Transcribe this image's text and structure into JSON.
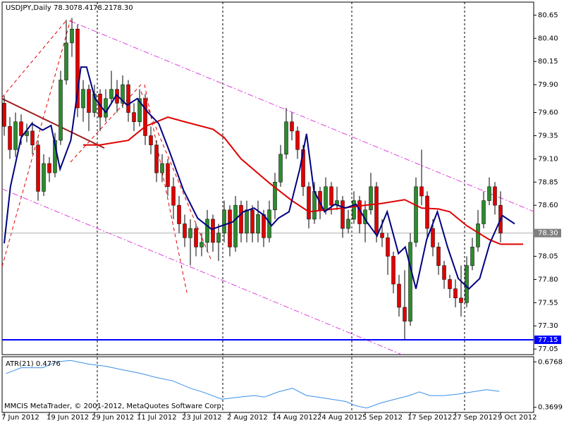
{
  "chart_data": {
    "type": "candlestick",
    "title": "USDJPY,Daily",
    "header_ohlc": {
      "values": [
        78.3,
        78.41,
        78.21,
        78.3
      ],
      "value_labels": [
        "78.30",
        "78.41",
        "78.21",
        "78.30"
      ]
    },
    "categories": [
      "7 Jun 2012",
      null,
      null,
      null,
      null,
      null,
      null,
      null,
      "19 Jun 2012",
      null,
      null,
      null,
      null,
      null,
      null,
      null,
      "29 Jun 2012",
      null,
      null,
      null,
      null,
      null,
      null,
      null,
      "11 Jul 2012",
      null,
      null,
      null,
      null,
      null,
      null,
      null,
      "23 Jul 2012",
      null,
      null,
      null,
      null,
      null,
      null,
      null,
      "2 Aug 2012",
      null,
      null,
      null,
      null,
      null,
      null,
      null,
      "14 Aug 2012",
      null,
      null,
      null,
      null,
      null,
      null,
      null,
      "24 Aug 2012",
      null,
      null,
      null,
      null,
      null,
      null,
      null,
      "5 Sep 2012",
      null,
      null,
      null,
      null,
      null,
      null,
      null,
      "17 Sep 2012",
      null,
      null,
      null,
      null,
      null,
      null,
      null,
      "27 Sep 2012",
      null,
      null,
      null,
      null,
      null,
      null,
      null,
      "9 Oct 2012"
    ],
    "open": [
      79.7,
      79.45,
      79.2,
      79.5,
      79.35,
      79.4,
      79.25,
      78.75,
      79.05,
      78.95,
      79.3,
      79.95,
      80.35,
      80.5,
      79.65,
      79.85,
      79.6,
      79.8,
      79.55,
      79.75,
      79.85,
      79.7,
      79.9,
      79.6,
      79.5,
      79.75,
      79.35,
      79.25,
      78.95,
      79.05,
      78.8,
      78.6,
      78.4,
      78.25,
      78.35,
      78.15,
      78.2,
      78.45,
      78.2,
      78.3,
      78.55,
      78.15,
      78.6,
      78.3,
      78.55,
      78.3,
      78.5,
      78.25,
      78.55,
      78.85,
      79.15,
      79.5,
      79.4,
      79.2,
      78.8,
      78.45,
      78.75,
      78.55,
      78.8,
      78.6,
      78.65,
      78.35,
      78.45,
      78.65,
      78.4,
      78.55,
      78.8,
      78.3,
      78.25,
      78.05,
      77.75,
      77.5,
      77.35,
      78.2,
      78.8,
      78.7,
      78.35,
      78.15,
      77.95,
      77.8,
      77.7,
      77.6,
      77.55,
      77.95,
      78.15,
      78.4,
      78.65,
      78.8,
      78.6
    ],
    "high": [
      79.78,
      79.55,
      79.6,
      79.58,
      79.48,
      79.5,
      79.3,
      79.15,
      79.12,
      79.38,
      80.05,
      80.6,
      80.62,
      80.55,
      79.95,
      79.9,
      79.9,
      79.85,
      79.85,
      80.05,
      79.95,
      80.0,
      79.95,
      79.7,
      79.85,
      79.8,
      79.45,
      79.3,
      79.15,
      79.1,
      78.9,
      78.7,
      78.5,
      78.45,
      78.4,
      78.3,
      78.55,
      78.5,
      78.4,
      78.65,
      78.6,
      78.7,
      78.65,
      78.65,
      78.6,
      78.65,
      78.55,
      78.65,
      78.95,
      79.25,
      79.65,
      79.6,
      79.45,
      79.25,
      78.85,
      78.85,
      78.8,
      78.9,
      78.85,
      78.8,
      78.7,
      78.55,
      78.75,
      78.7,
      78.65,
      78.95,
      78.85,
      78.45,
      78.3,
      78.1,
      77.85,
      77.9,
      78.3,
      78.9,
      79.2,
      78.75,
      78.45,
      78.2,
      78.0,
      77.85,
      77.8,
      77.95,
      78.05,
      78.25,
      78.55,
      78.75,
      78.9,
      78.85,
      78.75
    ],
    "low": [
      79.35,
      79.1,
      79.12,
      79.25,
      79.28,
      79.15,
      78.65,
      78.7,
      78.85,
      78.9,
      79.25,
      79.9,
      80.2,
      79.55,
      79.5,
      79.4,
      79.55,
      79.4,
      79.5,
      79.7,
      79.6,
      79.65,
      79.5,
      79.4,
      79.45,
      79.25,
      79.15,
      78.85,
      78.85,
      78.7,
      78.45,
      78.3,
      78.15,
      77.95,
      78.05,
      78.05,
      78.1,
      78.1,
      78.0,
      78.2,
      78.05,
      78.1,
      78.2,
      78.2,
      78.2,
      78.2,
      78.15,
      78.2,
      78.45,
      78.8,
      79.1,
      79.3,
      79.1,
      78.7,
      78.35,
      78.4,
      78.45,
      78.5,
      78.5,
      78.55,
      78.25,
      78.3,
      78.4,
      78.3,
      78.2,
      78.5,
      78.2,
      78.15,
      77.85,
      77.65,
      77.4,
      77.15,
      77.3,
      78.15,
      78.6,
      78.25,
      78.05,
      77.85,
      77.7,
      77.6,
      77.5,
      77.4,
      77.5,
      77.9,
      78.1,
      78.35,
      78.6,
      78.5,
      78.2
    ],
    "close": [
      79.45,
      79.2,
      79.5,
      79.35,
      79.4,
      79.25,
      78.75,
      79.05,
      78.95,
      79.3,
      79.95,
      80.35,
      80.5,
      79.65,
      79.85,
      79.6,
      79.8,
      79.55,
      79.75,
      79.85,
      79.7,
      79.9,
      79.6,
      79.5,
      79.75,
      79.35,
      79.25,
      78.95,
      79.05,
      78.8,
      78.6,
      78.4,
      78.25,
      78.35,
      78.15,
      78.2,
      78.45,
      78.2,
      78.3,
      78.55,
      78.15,
      78.6,
      78.3,
      78.55,
      78.3,
      78.5,
      78.25,
      78.55,
      78.85,
      79.15,
      79.5,
      79.4,
      79.2,
      78.8,
      78.45,
      78.75,
      78.55,
      78.8,
      78.6,
      78.65,
      78.35,
      78.45,
      78.65,
      78.4,
      78.55,
      78.8,
      78.3,
      78.25,
      78.05,
      77.75,
      77.5,
      77.35,
      78.2,
      78.8,
      78.7,
      78.35,
      78.15,
      77.95,
      77.8,
      77.7,
      77.6,
      77.55,
      77.95,
      78.15,
      78.4,
      78.65,
      78.8,
      78.6,
      78.3
    ],
    "up_color": "#2e8b2e",
    "down_color": "#e00000",
    "ylim": [
      76.99,
      80.79
    ],
    "yticks": [
      80.65,
      {
        "value": 80.4,
        "label": "80.40"
      },
      80.15,
      {
        "value": 79.9,
        "label": "79.90"
      },
      {
        "value": 79.6,
        "label": "79.60"
      },
      79.35,
      {
        "value": 79.1,
        "label": "79.10"
      },
      78.85,
      {
        "value": 78.6,
        "label": "78.60"
      },
      78.05,
      {
        "value": 77.8,
        "label": "77.80"
      },
      77.55,
      {
        "value": 77.3,
        "label": "77.30"
      },
      77.05
    ],
    "current_price": {
      "value": 78.3,
      "label": "78.30"
    },
    "hline": {
      "value": 77.15,
      "label": "77.15",
      "color": "#0000ff"
    },
    "overlays": [
      {
        "color": "#e00000",
        "width": 2,
        "x": [
          14,
          17,
          22,
          25,
          29,
          32,
          37,
          39,
          42,
          47,
          51,
          54,
          57,
          60,
          64,
          67,
          71,
          74,
          77,
          79,
          82,
          86,
          88,
          92
        ],
        "values": [
          79.25,
          79.25,
          79.3,
          79.45,
          79.55,
          79.5,
          79.42,
          79.33,
          79.1,
          78.84,
          78.65,
          78.53,
          78.55,
          78.57,
          78.6,
          78.62,
          78.66,
          78.57,
          78.56,
          78.53,
          78.38,
          78.23,
          78.18,
          78.18
        ]
      },
      {
        "color": "#000080",
        "width": 2,
        "x": [
          0,
          1.1,
          3,
          4.9,
          6.8,
          8.3,
          9.9,
          11.8,
          13.6,
          14.6,
          16.1,
          18,
          19.9,
          21.8,
          23.6,
          25.5,
          27.4,
          29.3,
          31.8,
          34.3,
          36.8,
          38.6,
          40.5,
          42.4,
          44.3,
          46.1,
          47.4,
          48.6,
          50.5,
          52.4,
          53.6,
          54.9,
          56.8,
          58.6,
          60.5,
          62.4,
          64.3,
          66.1,
          67.9,
          69.9,
          71.1,
          73,
          74.9,
          76.8,
          78.6,
          80.5,
          82.4,
          84.3,
          86.1,
          88.3,
          90.5
        ],
        "values": [
          78.19,
          78.8,
          79.33,
          79.48,
          79.41,
          79.46,
          78.99,
          79.3,
          80.09,
          80.09,
          79.75,
          79.6,
          79.79,
          79.68,
          79.75,
          79.6,
          79.48,
          79.18,
          78.76,
          78.46,
          78.34,
          78.38,
          78.42,
          78.53,
          78.57,
          78.49,
          78.38,
          78.46,
          78.53,
          78.99,
          79.37,
          78.76,
          78.53,
          78.61,
          78.57,
          78.61,
          78.42,
          78.27,
          78.53,
          78.08,
          78.15,
          77.7,
          78.23,
          78.53,
          78.15,
          77.81,
          77.7,
          77.81,
          78.19,
          78.49,
          78.4
        ]
      }
    ],
    "indicator": {
      "title": "ATR(21) 0.4776",
      "color": "#3c8fe8",
      "ylim": [
        0.3352,
        0.7115
      ],
      "yticks": [
        0.6768,
        0.3699
      ],
      "x": [
        0.3,
        3,
        6.8,
        9.3,
        11.8,
        14.9,
        18,
        21.1,
        24.3,
        26.8,
        29.9,
        33,
        35.5,
        38.6,
        41.8,
        44.3,
        46.1,
        48.6,
        51.1,
        53.6,
        55.5,
        58,
        60.5,
        62.4,
        64.3,
        66.8,
        69.3,
        71.8,
        73.6,
        75.5,
        78,
        80.5,
        83,
        85.5,
        87.8
      ],
      "values": [
        0.5976,
        0.6372,
        0.6372,
        0.6768,
        0.6867,
        0.662,
        0.6471,
        0.6224,
        0.5976,
        0.5729,
        0.5481,
        0.4986,
        0.4689,
        0.4244,
        0.4392,
        0.4491,
        0.4392,
        0.4739,
        0.4986,
        0.4491,
        0.4392,
        0.4244,
        0.4095,
        0.3798,
        0.365,
        0.3996,
        0.4244,
        0.4491,
        0.4739,
        0.4491,
        0.4491,
        0.459,
        0.4739,
        0.4887,
        0.4776
      ]
    },
    "footer": "MMCIS MetaTrader, © 2001-2012, MetaQuotes Software Corp."
  }
}
